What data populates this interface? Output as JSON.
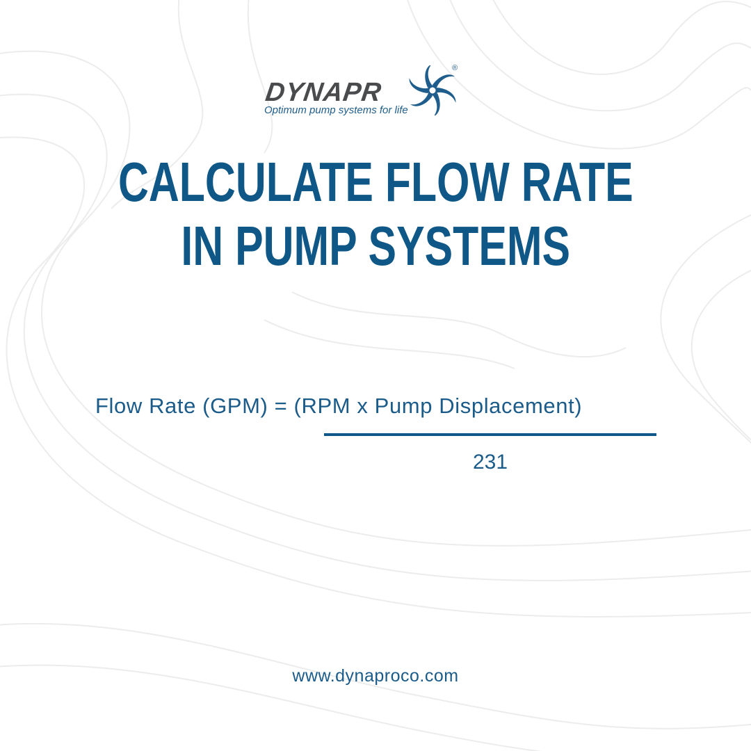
{
  "logo": {
    "wordmark": "DYNAPRO",
    "tagline": "Optimum pump systems for life",
    "registered": "®"
  },
  "title": {
    "line1": "CALCULATE FLOW RATE",
    "line2": "IN PUMP SYSTEMS"
  },
  "formula": {
    "numerator": "Flow Rate (GPM) = (RPM x Pump Displacement)",
    "denominator": "231"
  },
  "footer": {
    "url": "www.dynaproco.com"
  },
  "colors": {
    "primary": "#0e5786",
    "logo_gray": "#4a4b4d",
    "background": "#ffffff",
    "pattern": "#ececec"
  }
}
